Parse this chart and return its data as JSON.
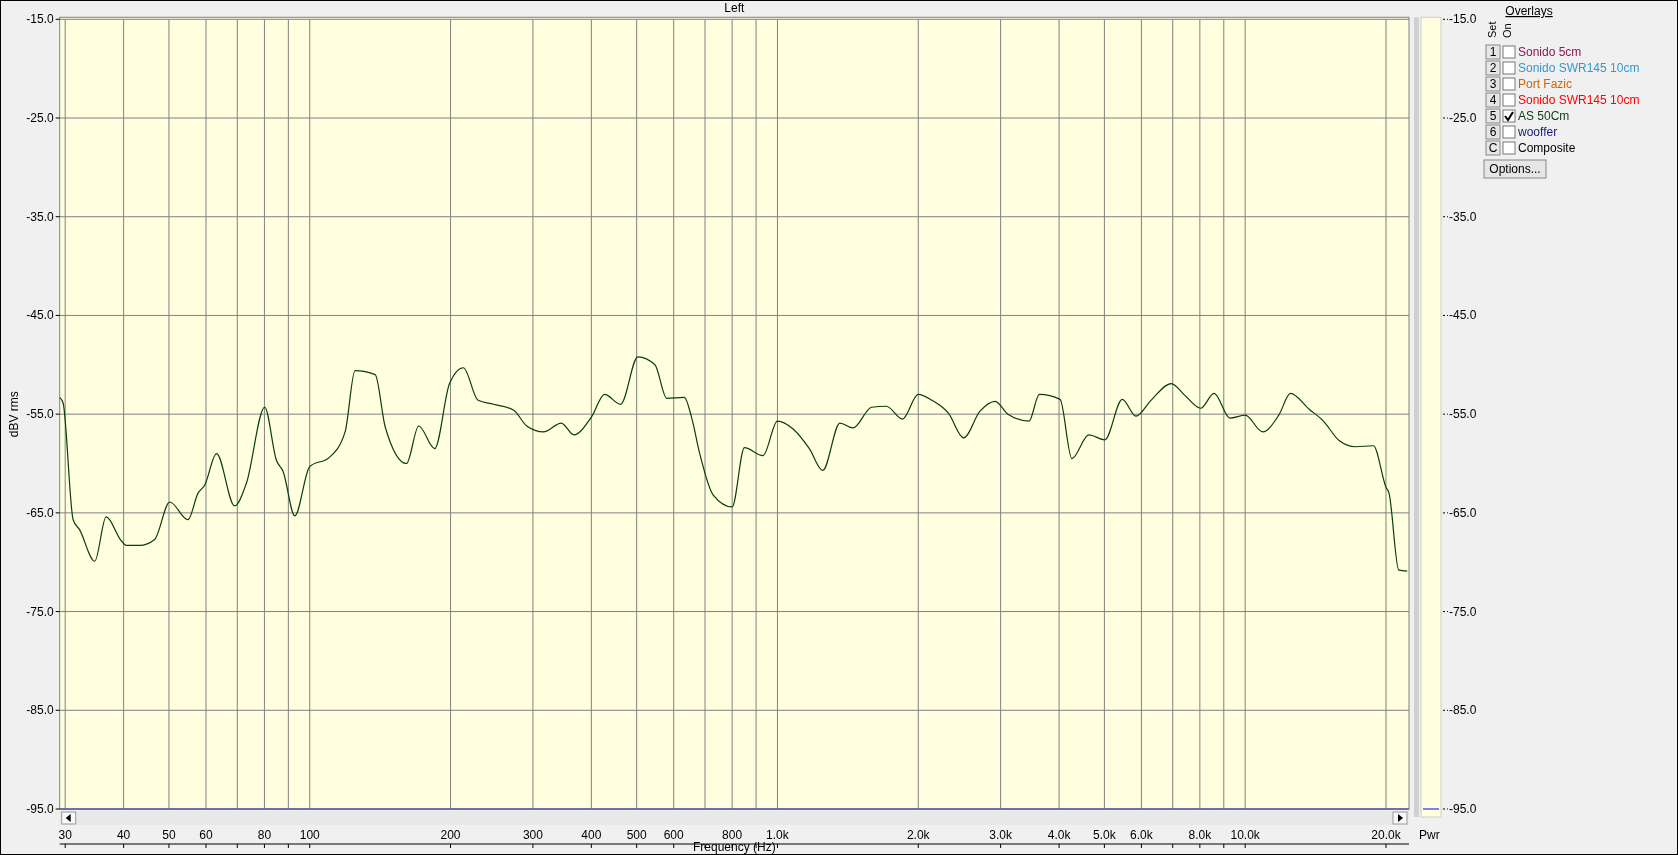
{
  "chart_data": {
    "type": "line",
    "title": "Left",
    "xlabel": "Frequency (Hz)",
    "ylabel": "dBV rms",
    "log": "x",
    "grid": true,
    "legend": "right",
    "legend_title": "Overlays",
    "marker": "none",
    "line_style": "solid",
    "xlim": [
      29.2,
      22400
    ],
    "ylim": [
      -95,
      -15
    ],
    "y2lim": [
      -95,
      -15
    ],
    "xticks": [
      30,
      40,
      50,
      60,
      {
        "value": 70,
        "label": null
      },
      80,
      {
        "value": 90,
        "label": null
      },
      100,
      200,
      300,
      400,
      500,
      600,
      {
        "value": 700,
        "label": null
      },
      800,
      {
        "value": 900,
        "label": null
      },
      {
        "value": 1000,
        "label": "1.0k"
      },
      {
        "value": 2000,
        "label": "2.0k"
      },
      {
        "value": 3000,
        "label": "3.0k"
      },
      {
        "value": 4000,
        "label": "4.0k"
      },
      {
        "value": 5000,
        "label": "5.0k"
      },
      {
        "value": 6000,
        "label": "6.0k"
      },
      {
        "value": 7000,
        "label": null
      },
      {
        "value": 8000,
        "label": "8.0k"
      },
      {
        "value": 9000,
        "label": null
      },
      {
        "value": 10000,
        "label": "10.0k"
      },
      {
        "value": 20000,
        "label": "20.0k"
      }
    ],
    "yticks": [
      {
        "value": -15,
        "label": "-15.0"
      },
      {
        "value": -25,
        "label": "-25.0"
      },
      {
        "value": -35,
        "label": "-35.0"
      },
      {
        "value": -45,
        "label": "-45.0"
      },
      {
        "value": -55,
        "label": "-55.0"
      },
      {
        "value": -65,
        "label": "-65.0"
      },
      {
        "value": -75,
        "label": "-75.0"
      },
      {
        "value": -85,
        "label": "-85.0"
      },
      {
        "value": -95,
        "label": "-95.0"
      }
    ],
    "y2ticks": [
      {
        "value": -15,
        "label": "-15.0"
      },
      {
        "value": -25,
        "label": "-25.0"
      },
      {
        "value": -35,
        "label": "-35.0"
      },
      {
        "value": -45,
        "label": "-45.0"
      },
      {
        "value": -55,
        "label": "-55.0"
      },
      {
        "value": -65,
        "label": "-65.0"
      },
      {
        "value": -75,
        "label": "-75.0"
      },
      {
        "value": -85,
        "label": "-85.0"
      },
      {
        "value": -95,
        "label": "-95.0"
      }
    ],
    "annotations": [
      "Set",
      "On",
      "1",
      "Sonido 5cm",
      "2",
      "Sonido SWR145 10cm",
      "3",
      "Port Fazic",
      "4",
      "Sonido SWR145 10cm",
      "5",
      "6",
      "wooffer",
      "C",
      "Composite",
      "Options...",
      "Pwr"
    ],
    "series": [
      {
        "name": "AS 50Cm",
        "color": "#0b3d0b",
        "x": [
          29.2,
          29.7,
          31.2,
          32.2,
          34.7,
          36.7,
          39.5,
          40.5,
          43.3,
          46.6,
          50.2,
          54.9,
          57.7,
          59.6,
          63.2,
          69.1,
          73.2,
          80.1,
          84.9,
          87.7,
          92.9,
          100,
          110,
          119,
          125,
          138,
          145,
          161,
          171,
          185,
          199,
          213,
          229,
          247,
          273,
          291,
          316,
          345,
          367,
          400,
          427,
          462,
          503,
          547,
          580,
          632,
          655,
          682,
          729,
          800,
          850,
          931,
          1000,
          1080,
          1170,
          1250,
          1360,
          1450,
          1590,
          1710,
          1850,
          2000,
          2140,
          2320,
          2500,
          2710,
          2920,
          3110,
          3450,
          3630,
          4020,
          4260,
          4630,
          5010,
          5460,
          5840,
          6290,
          6950,
          7430,
          8030,
          8580,
          9280,
          10000,
          10900,
          11800,
          12500,
          13700,
          14700,
          15900,
          17200,
          18800,
          20000,
          20300,
          21300,
          22200
        ],
        "values": [
          -53.3,
          -53.9,
          -65.7,
          -66.7,
          -69.9,
          -65.4,
          -67.8,
          -68.3,
          -68.3,
          -67.7,
          -63.9,
          -65.7,
          -63.0,
          -62.2,
          -59.0,
          -64.3,
          -62.0,
          -54.3,
          -59.7,
          -60.8,
          -65.3,
          -60.3,
          -59.4,
          -56.8,
          -50.6,
          -51.0,
          -56.3,
          -60.0,
          -56.2,
          -58.5,
          -51.9,
          -50.3,
          -53.6,
          -54.0,
          -54.6,
          -56.2,
          -56.8,
          -55.9,
          -57.1,
          -55.3,
          -53.0,
          -54.0,
          -49.2,
          -50.0,
          -53.4,
          -53.3,
          -55.3,
          -59.0,
          -63.2,
          -64.4,
          -58.4,
          -59.2,
          -55.7,
          -56.5,
          -58.5,
          -60.7,
          -55.9,
          -56.4,
          -54.3,
          -54.2,
          -55.5,
          -53.0,
          -53.6,
          -54.9,
          -57.4,
          -54.7,
          -53.7,
          -55.0,
          -55.7,
          -53.0,
          -53.5,
          -59.5,
          -57.1,
          -57.6,
          -53.5,
          -55.2,
          -53.6,
          -51.9,
          -53.1,
          -54.4,
          -52.9,
          -55.4,
          -55.1,
          -56.8,
          -55.1,
          -52.9,
          -54.5,
          -55.7,
          -57.7,
          -58.3,
          -58.2,
          -62.4,
          -63.0,
          -70.8,
          -70.9
        ]
      }
    ]
  }
}
